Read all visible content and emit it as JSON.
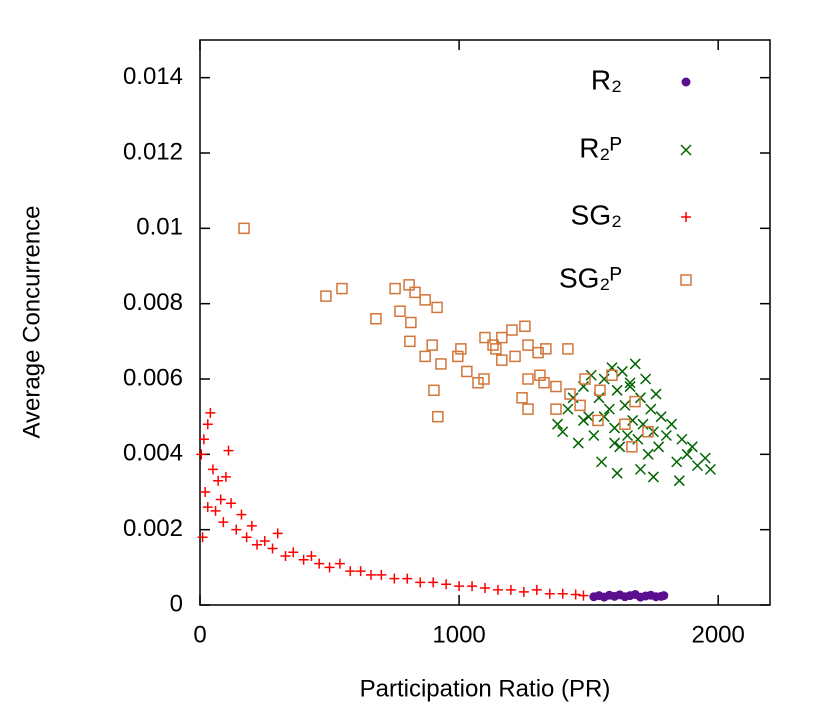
{
  "chart_data": {
    "type": "scatter",
    "x_label": "Participation Ratio (PR)",
    "y_label": "Average Concurrence",
    "xlim": [
      0,
      2200
    ],
    "xticks": [
      0,
      1000,
      2000
    ],
    "ylim": [
      0,
      0.015
    ],
    "yticks": [
      0,
      0.002,
      0.004,
      0.006,
      0.008,
      0.01,
      0.012,
      0.014
    ],
    "grid": false,
    "legend_position": "top-right",
    "series": [
      {
        "name": "R₂",
        "color": "#5a0f8f",
        "marker": "circle",
        "x": [
          1520,
          1540,
          1560,
          1580,
          1600,
          1620,
          1640,
          1660,
          1680,
          1700,
          1720,
          1740,
          1760,
          1780,
          1790
        ],
        "values": [
          0.00022,
          0.00025,
          0.00021,
          0.00026,
          0.00023,
          0.00027,
          0.00022,
          0.00025,
          0.00028,
          0.00021,
          0.00024,
          0.00026,
          0.00022,
          0.00023,
          0.00025
        ]
      },
      {
        "name": "R₂ᴾ",
        "color": "#006400",
        "marker": "x",
        "x": [
          1380,
          1400,
          1420,
          1440,
          1460,
          1480,
          1500,
          1510,
          1520,
          1540,
          1550,
          1560,
          1580,
          1590,
          1600,
          1610,
          1620,
          1630,
          1640,
          1650,
          1660,
          1670,
          1680,
          1690,
          1700,
          1710,
          1720,
          1730,
          1740,
          1750,
          1760,
          1770,
          1780,
          1800,
          1820,
          1840,
          1860,
          1880,
          1900,
          1920,
          1950,
          1970,
          1560,
          1610,
          1660,
          1700,
          1600,
          1750,
          1850,
          1480
        ],
        "values": [
          0.0048,
          0.0046,
          0.0052,
          0.0055,
          0.0043,
          0.0058,
          0.005,
          0.0061,
          0.0045,
          0.0055,
          0.0038,
          0.006,
          0.0052,
          0.0063,
          0.0047,
          0.0057,
          0.0042,
          0.0062,
          0.0053,
          0.0045,
          0.0059,
          0.0049,
          0.0064,
          0.0044,
          0.0055,
          0.0048,
          0.006,
          0.004,
          0.0052,
          0.0046,
          0.0056,
          0.0042,
          0.005,
          0.0045,
          0.0048,
          0.0038,
          0.0044,
          0.004,
          0.0042,
          0.0037,
          0.0039,
          0.0036,
          0.005,
          0.0035,
          0.0058,
          0.0036,
          0.0043,
          0.0034,
          0.0033,
          0.0049
        ]
      },
      {
        "name": "SG₂",
        "color": "#ff0000",
        "marker": "plus",
        "x": [
          5,
          10,
          15,
          20,
          30,
          40,
          50,
          60,
          70,
          80,
          90,
          100,
          120,
          140,
          160,
          180,
          200,
          220,
          250,
          280,
          300,
          330,
          360,
          400,
          430,
          460,
          500,
          540,
          580,
          620,
          660,
          700,
          750,
          800,
          850,
          900,
          950,
          1000,
          1050,
          1100,
          1150,
          1200,
          1250,
          1300,
          1350,
          1400,
          1450,
          1480,
          30,
          110
        ],
        "values": [
          0.004,
          0.0018,
          0.0044,
          0.003,
          0.0048,
          0.0051,
          0.0036,
          0.0025,
          0.0033,
          0.0028,
          0.0022,
          0.0034,
          0.0027,
          0.002,
          0.0024,
          0.0018,
          0.0021,
          0.0016,
          0.0017,
          0.0015,
          0.0019,
          0.0013,
          0.0014,
          0.0012,
          0.0013,
          0.0011,
          0.001,
          0.0011,
          0.0009,
          0.0009,
          0.0008,
          0.0008,
          0.0007,
          0.0007,
          0.0006,
          0.0006,
          0.00055,
          0.0005,
          0.0005,
          0.00045,
          0.0004,
          0.0004,
          0.00035,
          0.0004,
          0.0003,
          0.0003,
          0.00028,
          0.00025,
          0.0026,
          0.0041
        ]
      },
      {
        "name": "SG₂ᴾ",
        "color": "#d2763a",
        "marker": "square",
        "x": [
          170,
          486,
          548,
          679,
          753,
          772,
          807,
          830,
          869,
          915,
          814,
          810,
          869,
          896,
          930,
          903,
          918,
          1007,
          995,
          1030,
          1073,
          1096,
          1100,
          1131,
          1142,
          1165,
          1204,
          1254,
          1165,
          1216,
          1266,
          1305,
          1335,
          1420,
          1266,
          1312,
          1243,
          1266,
          1374,
          1428,
          1486,
          1544,
          1590,
          1467,
          1536,
          1640,
          1667,
          1729,
          1679,
          1374,
          1328
        ],
        "values": [
          0.01,
          0.0082,
          0.0084,
          0.0076,
          0.0084,
          0.0078,
          0.0085,
          0.0083,
          0.0081,
          0.0079,
          0.0075,
          0.007,
          0.0066,
          0.0069,
          0.0064,
          0.0057,
          0.005,
          0.0068,
          0.0066,
          0.0062,
          0.0059,
          0.006,
          0.0071,
          0.0069,
          0.0068,
          0.0071,
          0.0073,
          0.0074,
          0.0065,
          0.0066,
          0.0069,
          0.0067,
          0.0068,
          0.0068,
          0.006,
          0.0061,
          0.0055,
          0.0052,
          0.0052,
          0.0056,
          0.006,
          0.0057,
          0.0061,
          0.0053,
          0.0049,
          0.0048,
          0.0042,
          0.0046,
          0.0054,
          0.0058,
          0.0059
        ]
      }
    ]
  }
}
